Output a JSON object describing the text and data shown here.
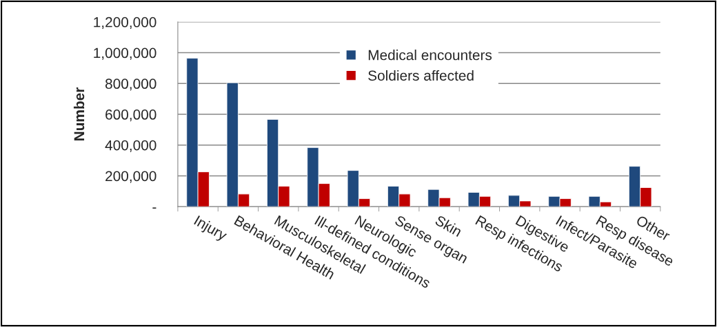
{
  "chart_data": {
    "type": "bar",
    "ylabel": "Number",
    "categories": [
      "Injury",
      "Behavioral Health",
      "Musculoskeletal",
      "Ill-defined conditions",
      "Neurologic",
      "Sense organ",
      "Skin",
      "Resp infections",
      "Digestive",
      "Infect/Parasite",
      "Resp disease",
      "Other"
    ],
    "series": [
      {
        "name": "Medical encounters",
        "color": "#1f497d",
        "values": [
          964000,
          805000,
          567000,
          384000,
          235000,
          133000,
          112000,
          93000,
          73000,
          67000,
          67000,
          262000
        ]
      },
      {
        "name": "Soldiers affected",
        "color": "#c00000",
        "values": [
          226000,
          82000,
          133000,
          150000,
          52000,
          82000,
          58000,
          67000,
          37000,
          52000,
          31000,
          124000
        ]
      }
    ],
    "ylim": [
      0,
      1200000
    ],
    "yticks": [
      {
        "value": 0,
        "label": "-"
      },
      {
        "value": 200000,
        "label": "200,000"
      },
      {
        "value": 400000,
        "label": "400,000"
      },
      {
        "value": 600000,
        "label": "600,000"
      },
      {
        "value": 800000,
        "label": "800,000"
      },
      {
        "value": 1000000,
        "label": "1,000,000"
      },
      {
        "value": 1200000,
        "label": "1,200,000"
      }
    ],
    "grid": "y",
    "legend": "top"
  }
}
